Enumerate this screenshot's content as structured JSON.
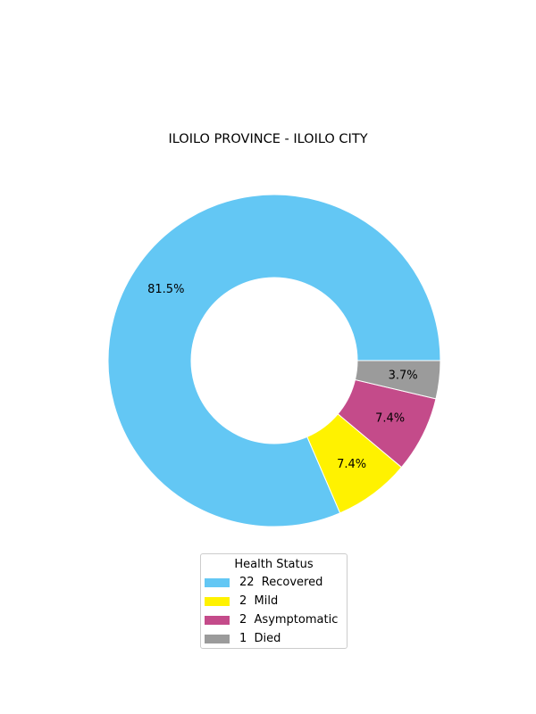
{
  "chart_data": {
    "type": "pie",
    "donut": true,
    "title": "ILOILO PROVINCE - ILOILO CITY",
    "categories": [
      "Recovered",
      "Mild",
      "Asymptomatic",
      "Died"
    ],
    "values": [
      22,
      2,
      2,
      1
    ],
    "percent_labels": [
      "81.5%",
      "7.4%",
      "7.4%",
      "3.7%"
    ],
    "colors": [
      "#63c7f4",
      "#fff200",
      "#c44b8a",
      "#9b9b9b"
    ],
    "legend": {
      "title": "Health Status",
      "placement": "bottom-center",
      "entries": [
        "22  Recovered",
        "2  Mild",
        "2  Asymptomatic",
        "1  Died"
      ]
    }
  }
}
